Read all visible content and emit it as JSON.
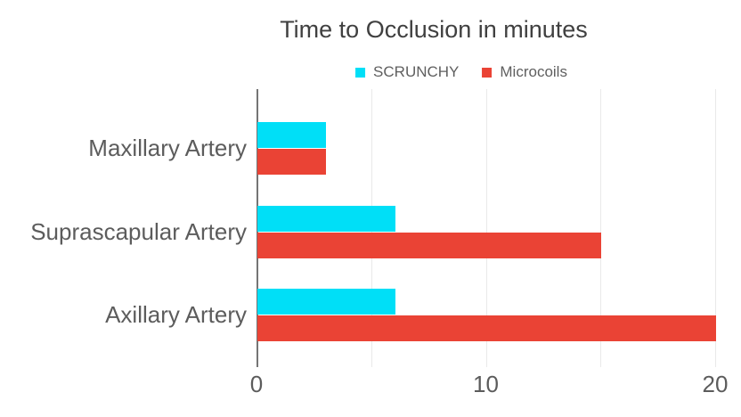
{
  "chart_data": {
    "type": "bar",
    "orientation": "horizontal",
    "title": "Time to Occlusion in minutes",
    "categories": [
      "Maxillary Artery",
      "Suprascapular Artery",
      "Axillary Artery"
    ],
    "series": [
      {
        "name": "SCRUNCHY",
        "color": "#00dff7",
        "values": [
          3,
          6,
          6
        ]
      },
      {
        "name": "Microcoils",
        "color": "#ea4335",
        "values": [
          3,
          15,
          20
        ]
      }
    ],
    "x_axis": {
      "min": 0,
      "max": 20,
      "tick_values": [
        0,
        10,
        20
      ],
      "tick_labels": [
        "0",
        "10",
        "20"
      ],
      "gridline_values": [
        0,
        5,
        10,
        15,
        20
      ]
    },
    "ylabel": "",
    "xlabel": "",
    "legend_position": "top-center",
    "grid": true,
    "colors": {
      "gridline": "#e9e9e9",
      "axis_line": "#757575",
      "title_text": "#404040",
      "axis_text": "#5c5c5c",
      "legend_text": "#5f5f5f",
      "background": "#ffffff"
    }
  }
}
